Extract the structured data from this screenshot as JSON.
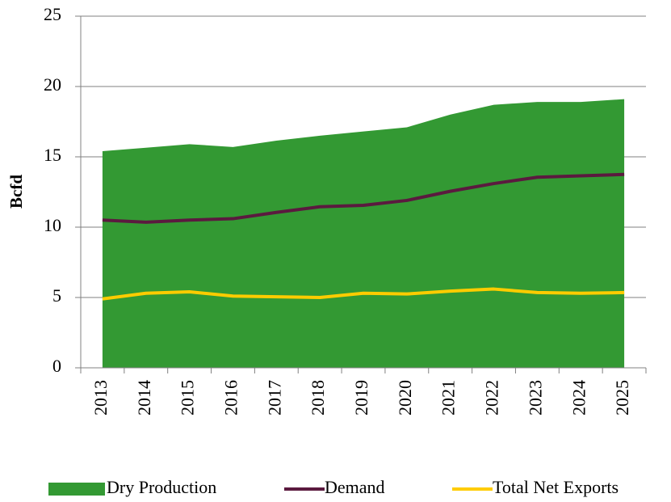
{
  "chart_data": {
    "type": "area_line",
    "ylabel": "Bcfd",
    "categories": [
      "2013",
      "2014",
      "2015",
      "2016",
      "2017",
      "2018",
      "2019",
      "2020",
      "2021",
      "2022",
      "2023",
      "2024",
      "2025"
    ],
    "series": [
      {
        "name": "Dry Production",
        "color": "#339933",
        "kind": "area",
        "values": [
          15.4,
          15.65,
          15.9,
          15.7,
          16.15,
          16.5,
          16.8,
          17.1,
          18.0,
          18.7,
          18.9,
          18.9,
          19.1
        ]
      },
      {
        "name": "Demand",
        "color": "#5b1a3f",
        "kind": "line",
        "values": [
          10.5,
          10.35,
          10.5,
          10.6,
          11.05,
          11.45,
          11.55,
          11.9,
          12.55,
          13.1,
          13.55,
          13.65,
          13.75
        ]
      },
      {
        "name": "Total Net Exports",
        "color": "#ffcc00",
        "kind": "line",
        "values": [
          4.9,
          5.3,
          5.4,
          5.1,
          5.05,
          5.0,
          5.3,
          5.25,
          5.45,
          5.6,
          5.35,
          5.3,
          5.35
        ]
      }
    ],
    "ylim": [
      0,
      25
    ],
    "yticks": [
      0,
      5,
      10,
      15,
      20,
      25
    ],
    "grid": true,
    "legend": "bottom"
  }
}
